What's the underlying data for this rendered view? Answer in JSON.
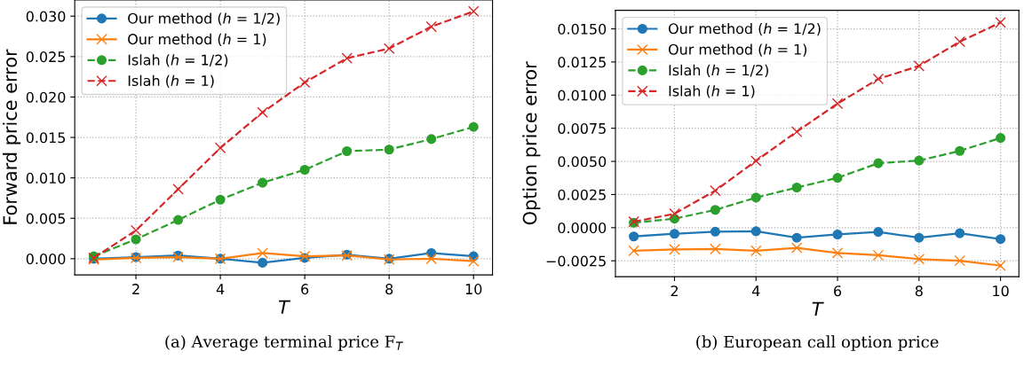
{
  "chart_data": [
    {
      "type": "line",
      "xlabel": "T",
      "ylabel": "Forward price error",
      "x": [
        1,
        2,
        3,
        4,
        5,
        6,
        7,
        8,
        9,
        10
      ],
      "xlim": [
        0.55,
        10.45
      ],
      "ylim": [
        -0.002,
        0.032
      ],
      "xticks": [
        2,
        4,
        6,
        8,
        10
      ],
      "yticks": [
        {
          "value": 0,
          "label": "0.000"
        },
        {
          "value": 0.005,
          "label": "0.005"
        },
        {
          "value": 0.01,
          "label": "0.010"
        },
        {
          "value": 0.015,
          "label": "0.015"
        },
        {
          "value": 0.02,
          "label": "0.020"
        },
        {
          "value": 0.025,
          "label": "0.025"
        },
        {
          "value": 0.03,
          "label": "0.030"
        }
      ],
      "grid": true,
      "legend": "top left",
      "annotations": [
        "(a) Average terminal price F$_{T}$"
      ],
      "series": [
        {
          "name": "Our method (ℎ = 1/2)",
          "color": "#1f77b4",
          "marker": "circle",
          "line_style": "solid",
          "values": [
            0.0,
            0.0002,
            0.0004,
            0.0,
            -0.0005,
            0.0001,
            0.0005,
            0.0,
            0.0007,
            0.0003
          ]
        },
        {
          "name": "Our method (ℎ = 1)",
          "color": "#ff7f0e",
          "marker": "cross",
          "line_style": "solid",
          "values": [
            -0.0001,
            0.0001,
            0.0002,
            0.0,
            0.0007,
            0.0003,
            0.0004,
            -0.0001,
            0.0,
            -0.0003
          ]
        },
        {
          "name": "Islah (ℎ = 1/2)",
          "color": "#2ca02c",
          "marker": "circle",
          "line_style": "dashed",
          "values": [
            0.0003,
            0.0024,
            0.0048,
            0.0073,
            0.0094,
            0.011,
            0.0133,
            0.0135,
            0.0148,
            0.0163
          ]
        },
        {
          "name": "Islah (ℎ = 1)",
          "color": "#d62728",
          "marker": "cross",
          "line_style": "dashed",
          "values": [
            0.0001,
            0.0035,
            0.0086,
            0.0137,
            0.0181,
            0.0218,
            0.0248,
            0.026,
            0.0287,
            0.0306
          ]
        }
      ]
    },
    {
      "type": "line",
      "xlabel": "T",
      "ylabel": "Option price error",
      "x": [
        1,
        2,
        3,
        4,
        5,
        6,
        7,
        8,
        9,
        10
      ],
      "xlim": [
        0.55,
        10.45
      ],
      "ylim": [
        -0.0037,
        0.0164
      ],
      "xticks": [
        2,
        4,
        6,
        8,
        10
      ],
      "yticks": [
        {
          "value": -0.0025,
          "label": "−0.0025"
        },
        {
          "value": 0,
          "label": "0.0000"
        },
        {
          "value": 0.0025,
          "label": "0.0025"
        },
        {
          "value": 0.005,
          "label": "0.0050"
        },
        {
          "value": 0.0075,
          "label": "0.0075"
        },
        {
          "value": 0.01,
          "label": "0.0100"
        },
        {
          "value": 0.0125,
          "label": "0.0125"
        },
        {
          "value": 0.015,
          "label": "0.0150"
        }
      ],
      "grid": true,
      "legend": "top left",
      "annotations": [
        "(b) European call option price"
      ],
      "series": [
        {
          "name": "Our method (ℎ = 1/2)",
          "color": "#1f77b4",
          "marker": "circle",
          "line_style": "solid",
          "values": [
            -0.00066,
            -0.00046,
            -0.0003,
            -0.00027,
            -0.00076,
            -0.00051,
            -0.00032,
            -0.00076,
            -0.00042,
            -0.00086
          ]
        },
        {
          "name": "Our method (ℎ = 1)",
          "color": "#ff7f0e",
          "marker": "cross",
          "line_style": "solid",
          "values": [
            -0.00174,
            -0.00164,
            -0.00161,
            -0.00174,
            -0.00152,
            -0.00191,
            -0.00208,
            -0.00237,
            -0.00249,
            -0.00286
          ]
        },
        {
          "name": "Islah (ℎ = 1/2)",
          "color": "#2ca02c",
          "marker": "circle",
          "line_style": "dashed",
          "values": [
            0.00037,
            0.00068,
            0.00134,
            0.00227,
            0.00303,
            0.00376,
            0.00486,
            0.00506,
            0.00579,
            0.00677
          ]
        },
        {
          "name": "Islah (ℎ = 1)",
          "color": "#d62728",
          "marker": "cross",
          "line_style": "dashed",
          "values": [
            0.00045,
            0.00105,
            0.00279,
            0.00504,
            0.00724,
            0.00936,
            0.01122,
            0.0122,
            0.01403,
            0.01548
          ]
        }
      ]
    }
  ]
}
